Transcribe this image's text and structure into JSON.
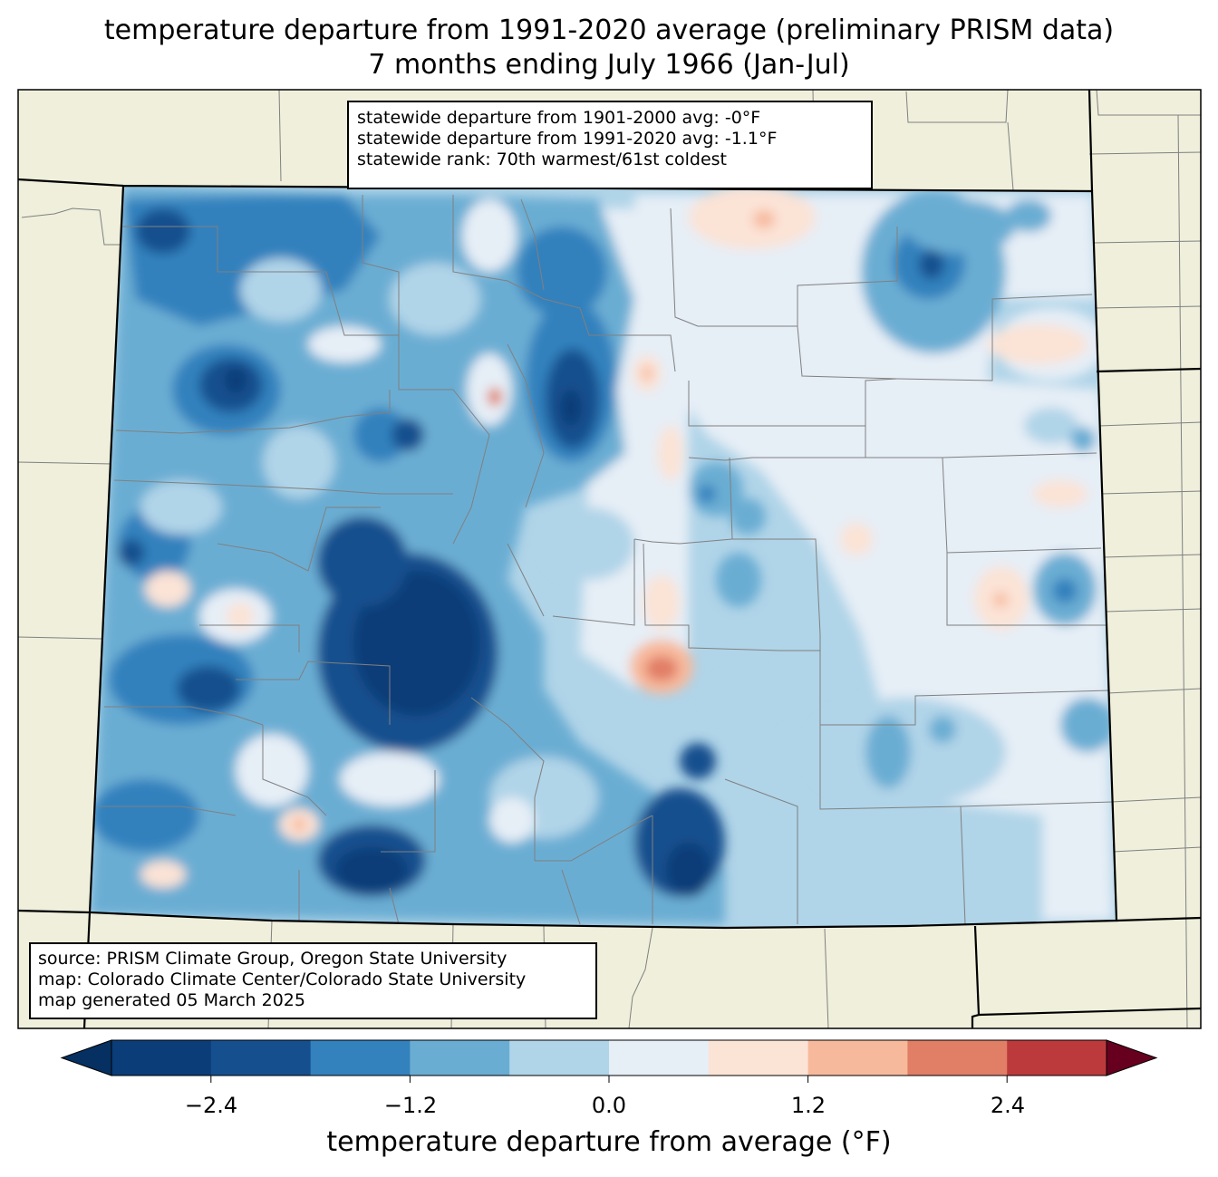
{
  "title": {
    "line1": "temperature departure from 1991-2020 average (preliminary PRISM data)",
    "line2": "7 months ending July 1966 (Jan-Jul)"
  },
  "stats": {
    "line1": "statewide departure from 1901-2000 avg: -0°F",
    "line2": "statewide departure from 1991-2020 avg: -1.1°F",
    "line3": "statewide rank: 70th warmest/61st coldest"
  },
  "source": {
    "line1": "source: PRISM Climate Group, Oregon State University",
    "line2": "map: Colorado Climate Center/Colorado State University",
    "line3": "map generated 05 March 2025"
  },
  "colorbar": {
    "label": "temperature departure from average (°F)",
    "ticks": [
      "−2.4",
      "−1.2",
      "0.0",
      "1.2",
      "2.4"
    ],
    "bins": [
      -3.0,
      -2.4,
      -1.8,
      -1.2,
      -0.6,
      0.0,
      0.6,
      1.2,
      1.8,
      2.4,
      3.0
    ],
    "colors": [
      "#0b3d78",
      "#154f8e",
      "#3381bd",
      "#6aadd3",
      "#b0d4e8",
      "#e6eef6",
      "#fbe3d6",
      "#f7b99c",
      "#e17e66",
      "#bd3a3c",
      "#880a20"
    ],
    "over_color": "#67001f",
    "under_color": "#053061"
  },
  "map_colors": {
    "land": "#efefdc",
    "state_border": "#000000",
    "county_border": "#808080"
  }
}
